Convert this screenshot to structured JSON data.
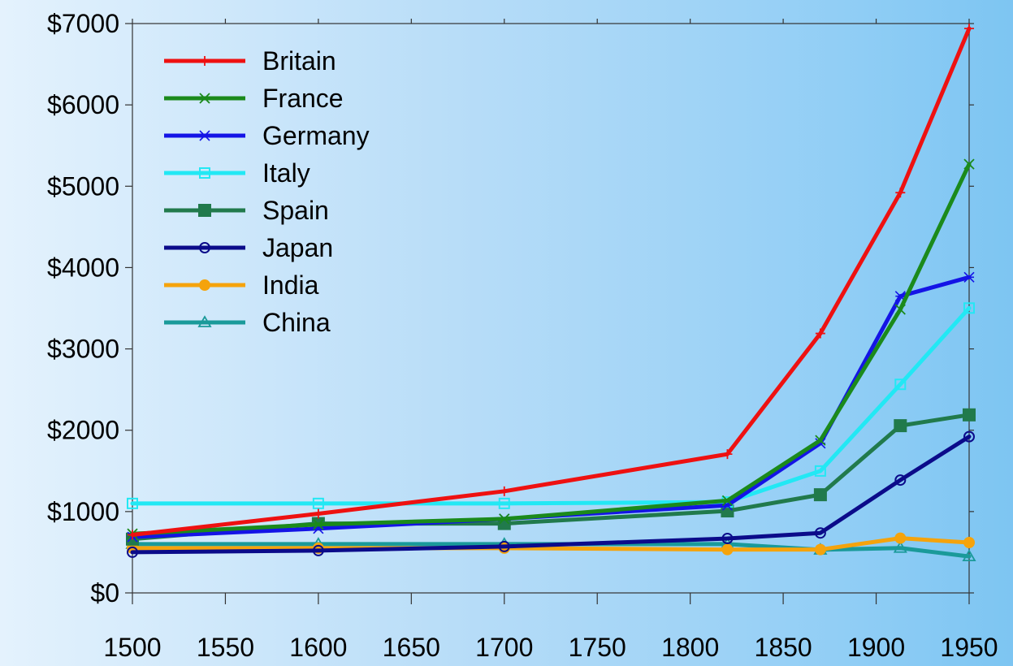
{
  "chart_data": {
    "type": "line",
    "title": "",
    "xlabel": "",
    "ylabel": "",
    "xlim": [
      1500,
      1950
    ],
    "ylim": [
      0,
      7000
    ],
    "x_ticks": [
      1500,
      1550,
      1600,
      1650,
      1700,
      1750,
      1800,
      1850,
      1900,
      1950
    ],
    "y_ticks": [
      0,
      1000,
      2000,
      3000,
      4000,
      5000,
      6000,
      7000
    ],
    "x_tick_labels": [
      "1500",
      "1550",
      "1600",
      "1650",
      "1700",
      "1750",
      "1800",
      "1850",
      "1900",
      "1950"
    ],
    "y_tick_labels": [
      "$0",
      "$1000",
      "$2000",
      "$3000",
      "$4000",
      "$5000",
      "$6000",
      "$7000"
    ],
    "grid": false,
    "legend_position": "top-left",
    "x": [
      1500,
      1600,
      1700,
      1820,
      1870,
      1913,
      1950
    ],
    "series": [
      {
        "name": "Britain",
        "color": "#ee1111",
        "marker": "plus",
        "values": [
          714,
          974,
          1250,
          1706,
          3190,
          4921,
          6939
        ]
      },
      {
        "name": "France",
        "color": "#1b8a1b",
        "marker": "cross",
        "values": [
          727,
          841,
          910,
          1135,
          1876,
          3485,
          5271
        ]
      },
      {
        "name": "Germany",
        "color": "#1414e6",
        "marker": "asterisk",
        "values": [
          688,
          791,
          910,
          1077,
          1839,
          3648,
          3881
        ]
      },
      {
        "name": "Italy",
        "color": "#22e8f4",
        "marker": "open-square",
        "values": [
          1100,
          1100,
          1100,
          1117,
          1499,
          2564,
          3502
        ]
      },
      {
        "name": "Spain",
        "color": "#217a4c",
        "marker": "filled-square",
        "values": [
          661,
          853,
          853,
          1008,
          1207,
          2056,
          2189
        ]
      },
      {
        "name": "Japan",
        "color": "#0b0b8a",
        "marker": "open-circle",
        "values": [
          500,
          520,
          570,
          669,
          737,
          1387,
          1921
        ]
      },
      {
        "name": "India",
        "color": "#f5a30c",
        "marker": "filled-circle",
        "values": [
          550,
          550,
          550,
          533,
          533,
          673,
          619
        ]
      },
      {
        "name": "China",
        "color": "#1a9a9a",
        "marker": "triangle",
        "values": [
          600,
          600,
          600,
          600,
          530,
          552,
          448
        ]
      }
    ]
  }
}
